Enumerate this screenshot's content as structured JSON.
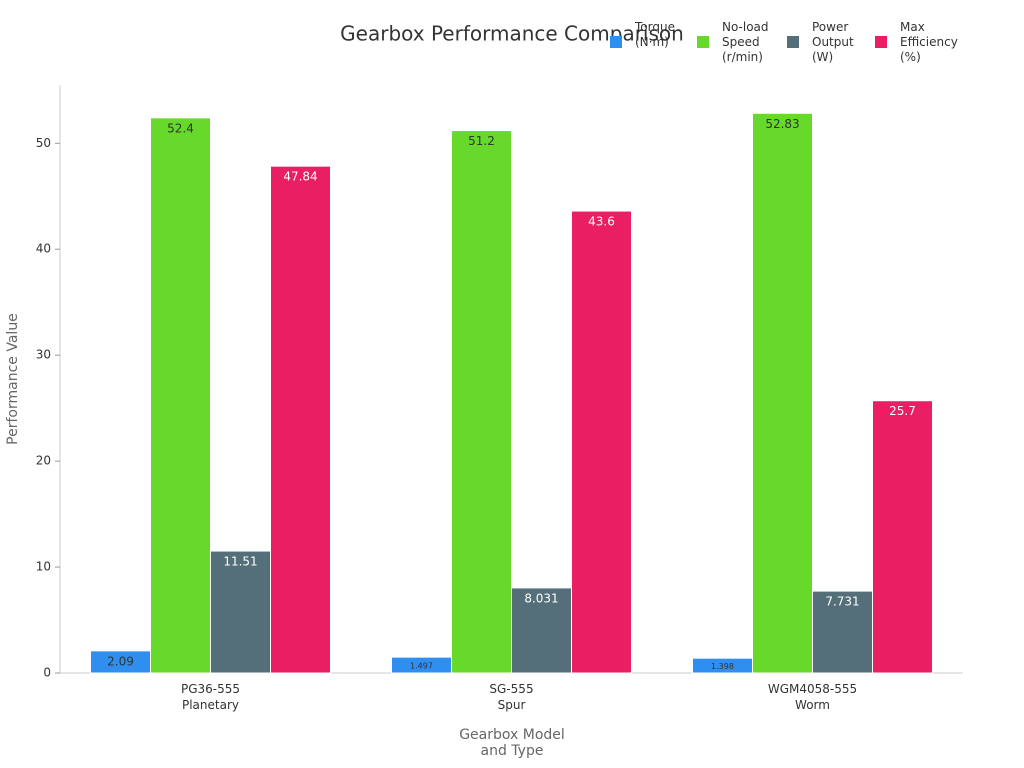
{
  "chart_data": {
    "type": "bar",
    "title": "Gearbox Performance Comparison",
    "x_label": "Gearbox Model\nand Type",
    "y_label": "Performance Value",
    "categories": [
      "PG36-555\nPlanetary",
      "SG-555\nSpur",
      "WGM4058-555\nWorm"
    ],
    "series": [
      {
        "name": "Torque\n(N·m)",
        "color": "#2e8ff0",
        "values": [
          2.09,
          1.497,
          1.398
        ]
      },
      {
        "name": "No-load\nSpeed\n(r/min)",
        "color": "#66d92b",
        "values": [
          52.4,
          51.2,
          52.83
        ]
      },
      {
        "name": "Power\nOutput\n(W)",
        "color": "#546e7a",
        "values": [
          11.51,
          8.031,
          7.731
        ]
      },
      {
        "name": "Max\nEfficiency\n(%)",
        "color": "#e91e63",
        "values": [
          47.84,
          43.6,
          25.7
        ]
      }
    ],
    "ylim": [
      0,
      55.5
    ],
    "yticks": [
      0,
      10,
      20,
      30,
      40,
      50
    ],
    "grid": false,
    "legend": "top-right"
  }
}
